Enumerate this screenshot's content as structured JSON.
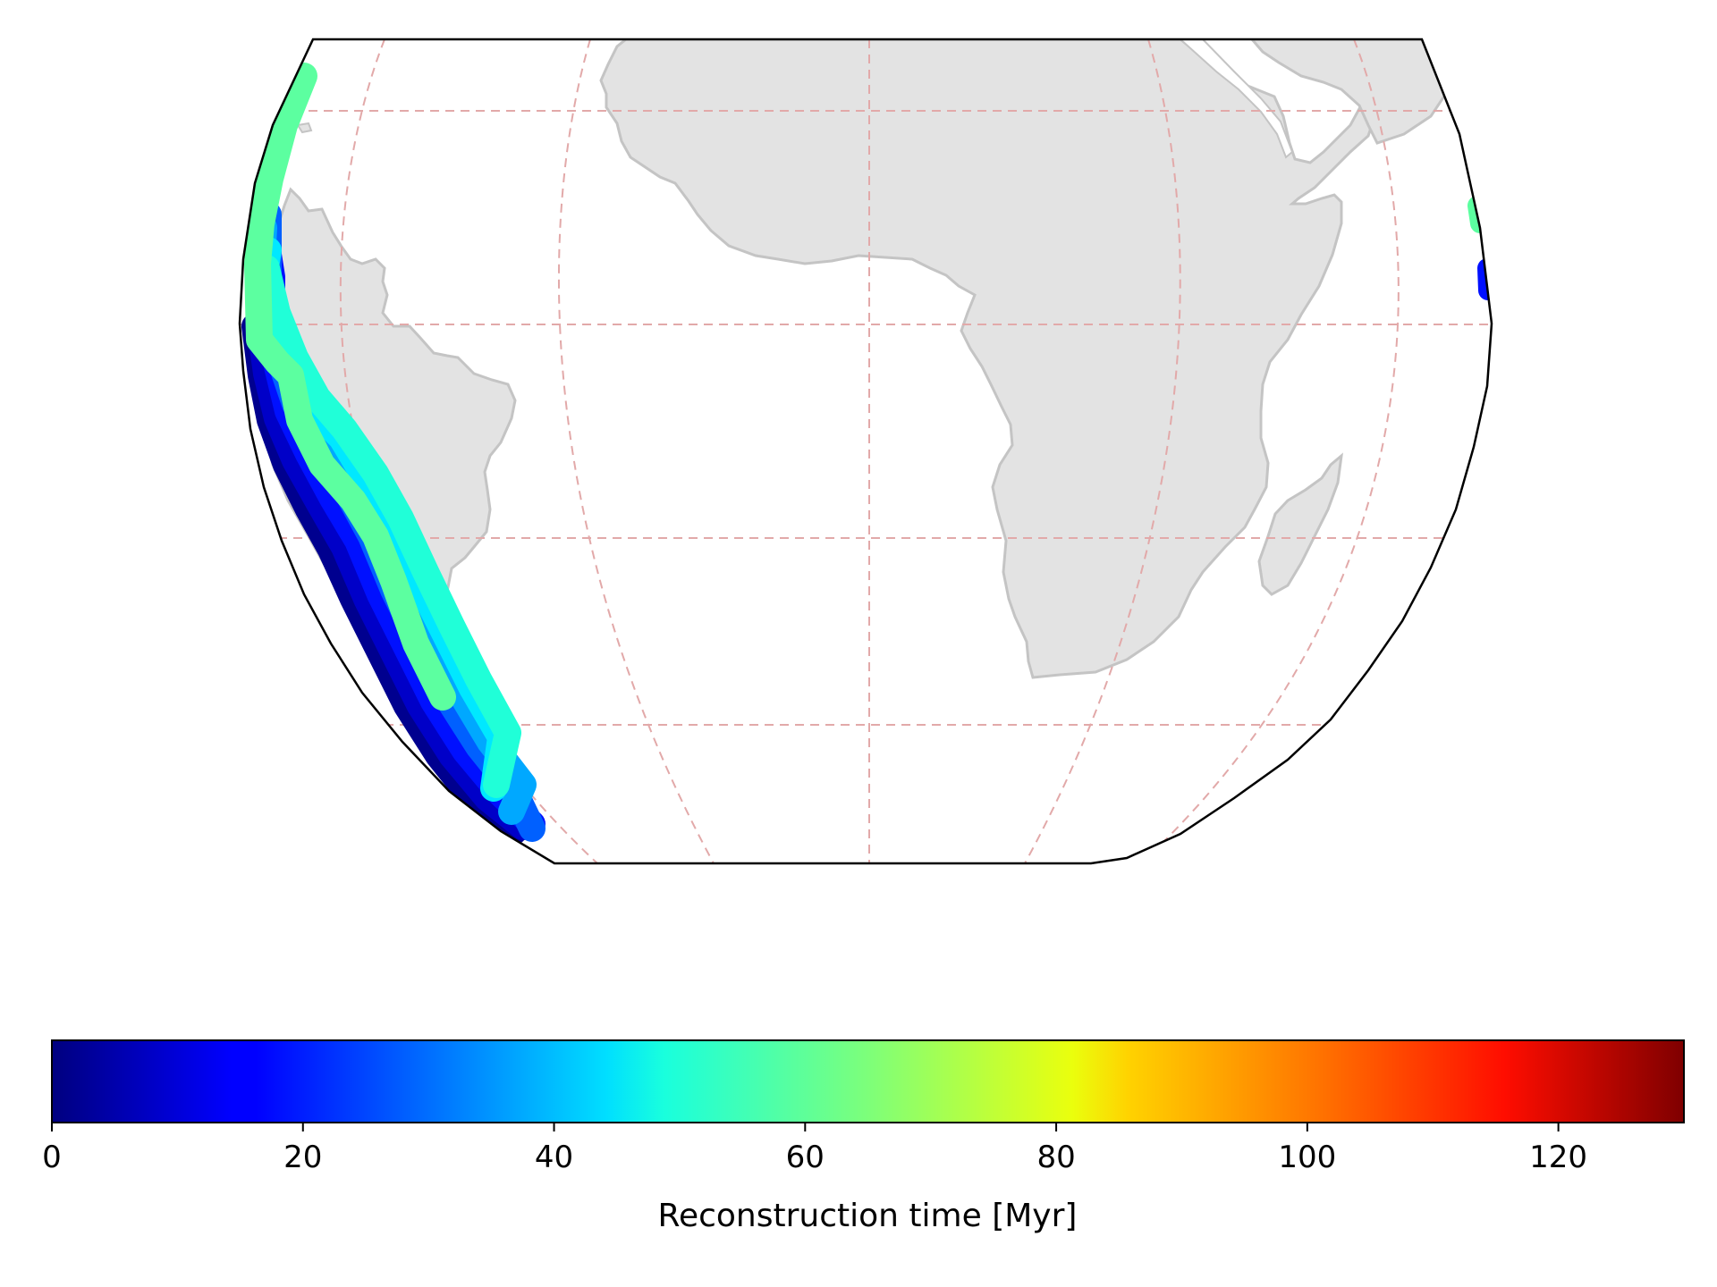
{
  "map": {
    "projection": "orthographic-like (clipped)",
    "land_color": "#e3e3e3",
    "land_edge_color": "#c4c4c4",
    "graticule_color": "#e2a9a9",
    "frame_color": "#000000",
    "regions_visible": [
      "South America (partial)",
      "Africa",
      "Madagascar",
      "Arabian Peninsula (partial)"
    ]
  },
  "trenches": [
    {
      "reconstruction_time_myr": 5,
      "color": "#00008f"
    },
    {
      "reconstruction_time_myr": 12,
      "color": "#0000c8"
    },
    {
      "reconstruction_time_myr": 20,
      "color": "#0010ff"
    },
    {
      "reconstruction_time_myr": 28,
      "color": "#0060ff"
    },
    {
      "reconstruction_time_myr": 36,
      "color": "#00a8ff"
    },
    {
      "reconstruction_time_myr": 44,
      "color": "#00e8ff"
    },
    {
      "reconstruction_time_myr": 52,
      "color": "#20ffd8"
    },
    {
      "reconstruction_time_myr": 60,
      "color": "#5cffa0"
    }
  ],
  "colorbar": {
    "label": "Reconstruction time [Myr]",
    "colormap": "jet",
    "min": 0,
    "max": 130,
    "ticks": [
      "0",
      "20",
      "40",
      "60",
      "80",
      "100",
      "120"
    ],
    "tick_values": [
      0,
      20,
      40,
      60,
      80,
      100,
      120
    ]
  }
}
